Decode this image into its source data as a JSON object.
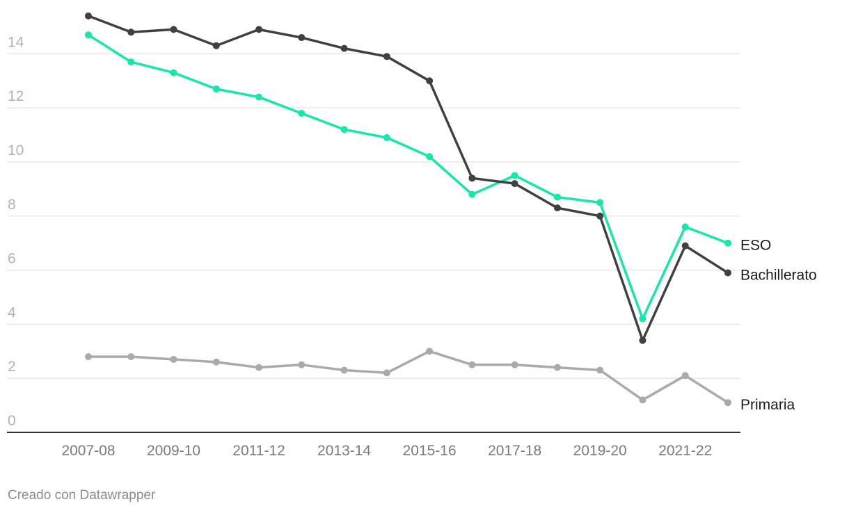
{
  "chart_data": {
    "type": "line",
    "title": "",
    "xlabel": "",
    "ylabel": "",
    "ylim": [
      0,
      15.5
    ],
    "y_ticks": [
      0,
      2,
      4,
      6,
      8,
      10,
      12,
      14
    ],
    "x_tick_labels": [
      "2007-08",
      "2009-10",
      "2011-12",
      "2013-14",
      "2015-16",
      "2017-18",
      "2019-20",
      "2021-22"
    ],
    "x": [
      "2007-08",
      "2008-09",
      "2009-10",
      "2010-11",
      "2011-12",
      "2012-13",
      "2013-14",
      "2014-15",
      "2015-16",
      "2016-17",
      "2017-18",
      "2018-19",
      "2019-20",
      "2020-21",
      "2021-22",
      "2022-23"
    ],
    "grid": true,
    "legend": "direct labels at line ends",
    "series": [
      {
        "name": "Bachillerato",
        "color": "#404040",
        "values": [
          15.4,
          14.8,
          14.9,
          14.3,
          14.9,
          14.6,
          14.2,
          13.9,
          13.0,
          9.4,
          9.2,
          8.3,
          8.0,
          3.4,
          6.9,
          5.9
        ]
      },
      {
        "name": "ESO",
        "color": "#15e8a9",
        "values": [
          14.7,
          13.7,
          13.3,
          12.7,
          12.4,
          11.8,
          11.2,
          10.9,
          10.2,
          8.8,
          9.5,
          8.7,
          8.5,
          4.2,
          7.6,
          7.0
        ]
      },
      {
        "name": "Primaria",
        "color": "#aaaaaa",
        "values": [
          2.8,
          2.8,
          2.7,
          2.6,
          2.4,
          2.5,
          2.3,
          2.2,
          3.0,
          2.5,
          2.5,
          2.4,
          2.3,
          1.2,
          2.1,
          1.1
        ]
      }
    ]
  },
  "footer": {
    "credit": "Creado con Datawrapper"
  }
}
